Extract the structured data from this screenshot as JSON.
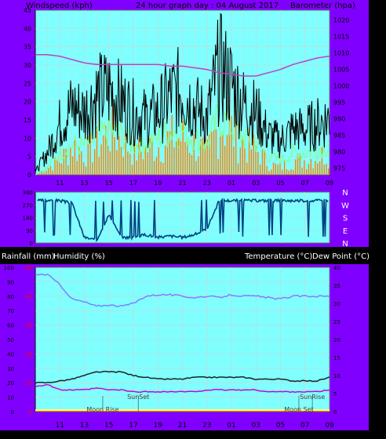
{
  "header": {
    "left_label": "Windspeed (kph)",
    "center_label": "24 hour graph day : 04 August 2017",
    "right_label": "Barometer (hpa)"
  },
  "footer_header": {
    "rain_label": "Rainfall (mm)",
    "humidity_label": "Humidity (%)",
    "temp_label": "Temperature (°C)",
    "dew_label": "Dew Point (°C)"
  },
  "colors": {
    "frame": "#8000ff",
    "plot_bg": "#80ffff",
    "grid": "#d0d0d0",
    "wind_gust": "#000000",
    "wind_avg": "#80ff80",
    "wind_bar": "#ff8000",
    "barometer": "#c040c0",
    "direction": "#004080",
    "humidity": "#8080ff",
    "temperature": "#202020",
    "dew_point": "#d000d0",
    "rain_axis": "#ff0000"
  },
  "chart_data": [
    {
      "type": "line",
      "name": "wind-barometer",
      "x_ticks": [
        "11",
        "13",
        "15",
        "17",
        "19",
        "21",
        "23",
        "01",
        "03",
        "05",
        "07",
        "09"
      ],
      "y_left_ticks": [
        0,
        5,
        10,
        15,
        20,
        25,
        30,
        35,
        40,
        45
      ],
      "y_left_lim": [
        0,
        45
      ],
      "y_right_ticks": [
        975,
        980,
        985,
        990,
        995,
        1000,
        1005,
        1010,
        1015,
        1020
      ],
      "y_right_lim": [
        973,
        1023
      ],
      "hours": [
        9,
        10,
        11,
        12,
        13,
        14,
        15,
        16,
        17,
        18,
        19,
        20,
        21,
        22,
        23,
        24,
        25,
        26,
        27,
        28,
        29,
        30,
        31,
        32,
        33
      ],
      "series": [
        {
          "key": "gust",
          "values": [
            1,
            8,
            18,
            24,
            22,
            28,
            30,
            26,
            22,
            20,
            22,
            28,
            30,
            24,
            20,
            38,
            32,
            25,
            22,
            14,
            12,
            16,
            16,
            18,
            20
          ]
        },
        {
          "key": "average",
          "values": [
            0,
            2,
            6,
            8,
            8,
            10,
            12,
            11,
            8,
            9,
            10,
            12,
            12,
            10,
            8,
            16,
            13,
            10,
            9,
            5,
            4,
            6,
            6,
            7,
            8
          ]
        },
        {
          "key": "bars",
          "values": [
            0,
            2,
            4,
            8,
            6,
            8,
            12,
            10,
            6,
            7,
            8,
            10,
            10,
            8,
            6,
            14,
            12,
            8,
            7,
            3,
            2,
            4,
            4,
            5,
            6
          ]
        },
        {
          "key": "barometer",
          "values": [
            1009.5,
            1009.5,
            1009,
            1008,
            1007,
            1006.5,
            1006.5,
            1006.5,
            1006.5,
            1006.5,
            1006.5,
            1006,
            1006,
            1005.5,
            1005,
            1004,
            1003.5,
            1003,
            1003,
            1004,
            1005,
            1006.5,
            1007.5,
            1008.5,
            1009
          ]
        }
      ]
    },
    {
      "type": "line",
      "name": "wind-direction",
      "y_ticks": [
        "N",
        "W",
        "S",
        "E",
        "N"
      ],
      "y_lim": [
        0,
        360
      ],
      "y_grid": [
        360,
        270,
        180,
        90,
        0
      ],
      "hours": [
        9,
        10,
        11,
        12,
        13,
        14,
        15,
        16,
        17,
        18,
        19,
        20,
        21,
        22,
        23,
        24,
        25,
        26,
        27,
        28,
        29,
        30,
        31,
        32,
        33
      ],
      "series": [
        {
          "key": "direction",
          "values": [
            300,
            300,
            300,
            280,
            40,
            20,
            200,
            40,
            40,
            60,
            40,
            50,
            40,
            60,
            100,
            300,
            300,
            300,
            300,
            300,
            300,
            300,
            300,
            300,
            300
          ]
        }
      ]
    },
    {
      "type": "line",
      "name": "temp-humidity",
      "x_ticks": [
        "11",
        "13",
        "15",
        "17",
        "19",
        "21",
        "23",
        "01",
        "03",
        "05",
        "07",
        "09"
      ],
      "y_left_ticks": [
        0,
        10,
        20,
        30,
        40,
        50,
        60,
        70,
        80,
        90,
        100
      ],
      "y_left_lim": [
        0,
        100
      ],
      "y_rain_ticks": [
        0,
        10,
        20,
        30,
        40,
        50
      ],
      "y_right_ticks": [
        0,
        5,
        10,
        15,
        20,
        25,
        30,
        35,
        40
      ],
      "y_right_lim": [
        0,
        40
      ],
      "hours": [
        9,
        10,
        11,
        12,
        13,
        14,
        15,
        16,
        17,
        18,
        19,
        20,
        21,
        22,
        23,
        24,
        25,
        26,
        27,
        28,
        29,
        30,
        31,
        32,
        33
      ],
      "annotations": [
        {
          "text": "Moon Rise",
          "hour": 14.5
        },
        {
          "text": "SunSet",
          "hour": 17.4
        },
        {
          "text": "Moon Set",
          "hour": 30.5
        },
        {
          "text": "SunRise",
          "hour": 31.6
        }
      ],
      "series": [
        {
          "key": "humidity",
          "values": [
            95,
            95,
            88,
            78,
            76,
            73,
            74,
            73,
            75,
            80,
            81,
            81,
            80,
            79,
            80,
            79,
            81,
            80,
            80,
            79,
            78,
            80,
            80,
            80,
            80
          ]
        },
        {
          "key": "temperature",
          "values": [
            8,
            8,
            8.5,
            9,
            10,
            11,
            11,
            11,
            10,
            9.5,
            9,
            9,
            9,
            9.5,
            9.5,
            9.5,
            9.5,
            9.5,
            9,
            9,
            9,
            8.5,
            8.5,
            8.5,
            9.5
          ]
        },
        {
          "key": "dew_point",
          "values": [
            7,
            7.5,
            6,
            6,
            6,
            6.5,
            6,
            6,
            5.5,
            5.5,
            5.5,
            5.5,
            5.5,
            5.5,
            6,
            6,
            6,
            6,
            6,
            5.5,
            5.5,
            5.5,
            5.5,
            5.5,
            6
          ]
        }
      ]
    }
  ]
}
